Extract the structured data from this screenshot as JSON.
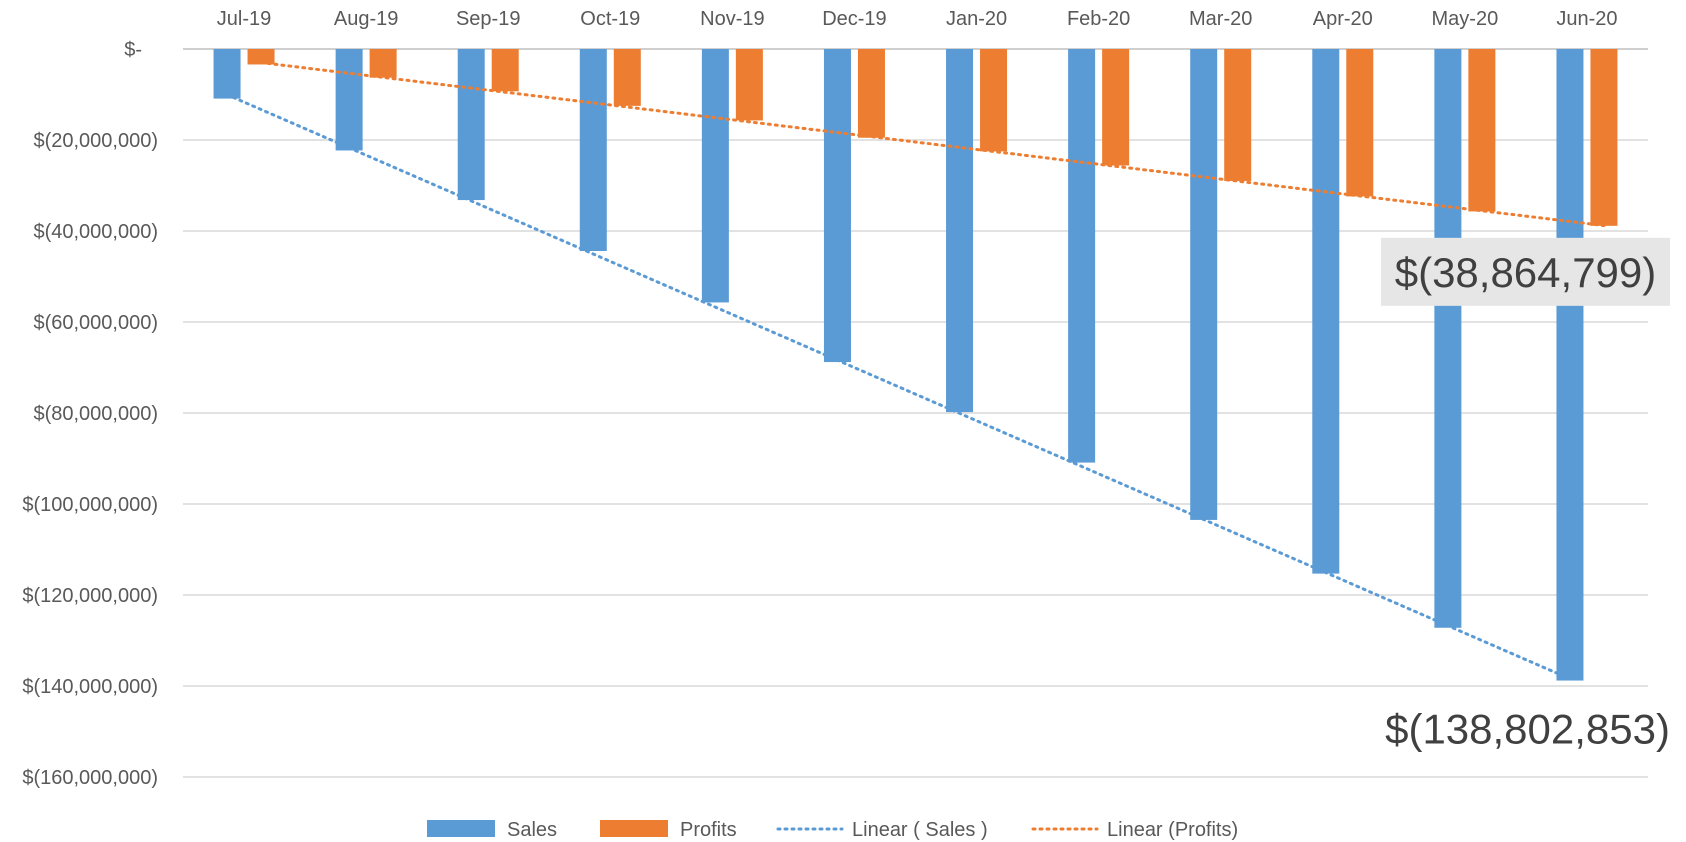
{
  "chart_data": {
    "type": "bar",
    "title": "",
    "xlabel": "",
    "ylabel": "",
    "categories": [
      "Jul-19",
      "Aug-19",
      "Sep-19",
      "Oct-19",
      "Nov-19",
      "Dec-19",
      "Jan-20",
      "Feb-20",
      "Mar-20",
      "Apr-20",
      "May-20",
      "Jun-20"
    ],
    "series": [
      {
        "name": "Sales",
        "color": "#5B9BD5",
        "values": [
          -10900000,
          -22300000,
          -33200000,
          -44400000,
          -55700000,
          -68800000,
          -79800000,
          -90900000,
          -103500000,
          -115300000,
          -127200000,
          -138802853
        ]
      },
      {
        "name": "Profits",
        "color": "#ED7D31",
        "values": [
          -3400000,
          -6300000,
          -9300000,
          -12500000,
          -15700000,
          -19500000,
          -22500000,
          -25600000,
          -29000000,
          -32400000,
          -35700000,
          -38864799
        ]
      }
    ],
    "trendlines": [
      {
        "name": "Linear ( Sales )",
        "series": "Sales",
        "color": "#5B9BD5"
      },
      {
        "name": "Linear (Profits)",
        "series": "Profits",
        "color": "#ED7D31"
      }
    ],
    "ylim": [
      -160000000,
      0
    ],
    "yticks": [
      0,
      -20000000,
      -40000000,
      -60000000,
      -80000000,
      -100000000,
      -120000000,
      -140000000,
      -160000000
    ],
    "ytick_labels": [
      "$-",
      "$(20,000,000)",
      "$(40,000,000)",
      "$(60,000,000)",
      "$(80,000,000)",
      "$(100,000,000)",
      "$(120,000,000)",
      "$(140,000,000)",
      "$(160,000,000)"
    ],
    "grid": true,
    "x_axis_position": "top",
    "legend_position": "bottom",
    "annotations": [
      {
        "text": "$(38,864,799)",
        "series": "Profits",
        "category": "Jun-20",
        "boxed": true
      },
      {
        "text": "$(138,802,853)",
        "series": "Sales",
        "category": "Jun-20",
        "boxed": false
      }
    ]
  }
}
